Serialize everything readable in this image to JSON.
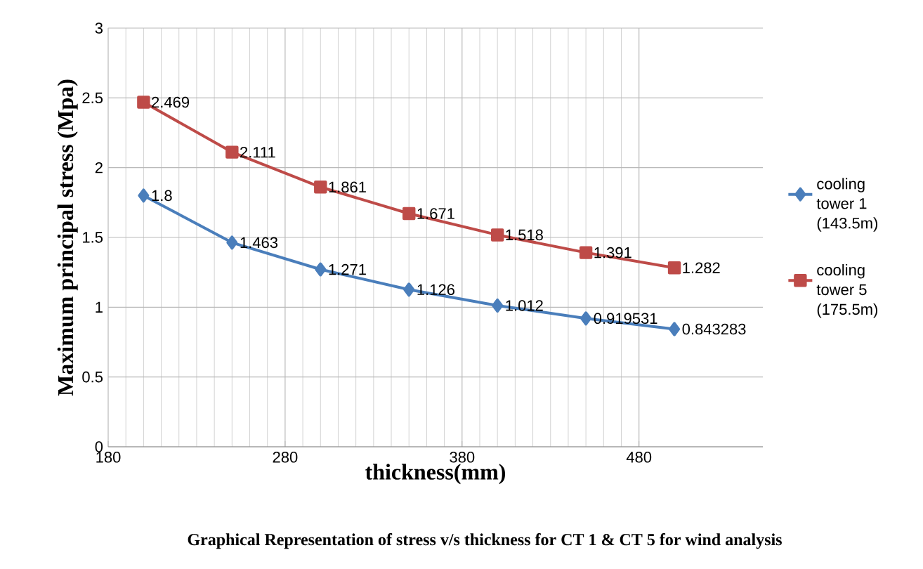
{
  "chart_data": {
    "type": "line",
    "xlabel": "thickness(mm)",
    "ylabel": "Maximum principal stress (Mpa)",
    "annotations": [
      "Graphical Representation  of stress v/s thickness for CT 1 & CT 5 for wind analysis"
    ],
    "x": [
      200,
      250,
      300,
      350,
      400,
      450,
      500
    ],
    "series": [
      {
        "name": "cooling tower 1 (143.5m)",
        "color": "#4a7ebb",
        "marker": "diamond",
        "values": [
          1.8,
          1.463,
          1.271,
          1.126,
          1.012,
          0.919531,
          0.843283
        ]
      },
      {
        "name": "cooling tower 5 (175.5m)",
        "color": "#be4b48",
        "marker": "square",
        "values": [
          2.469,
          2.111,
          1.861,
          1.671,
          1.518,
          1.391,
          1.282
        ]
      }
    ],
    "xlim": [
      180,
      550
    ],
    "xticks": [
      180,
      280,
      380,
      480
    ],
    "ylim": [
      0,
      3
    ],
    "yticks": [
      0,
      0.5,
      1,
      1.5,
      2,
      2.5,
      3
    ],
    "grid": true,
    "legend": "right",
    "data_labels": true,
    "line_style": "solid"
  }
}
